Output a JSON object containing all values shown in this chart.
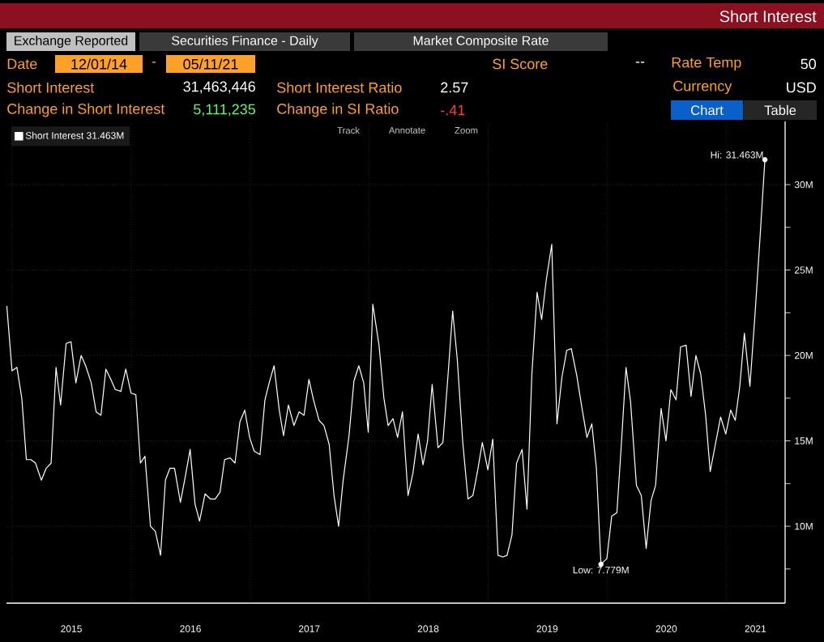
{
  "chart_data": {
    "type": "line",
    "title": "Short Interest",
    "annotations": [
      "Exchange Reported",
      "Securities Finance - Daily",
      "Market Composite Rate",
      "Date",
      "12/01/14",
      "-",
      "05/11/21",
      "SI Score",
      "--",
      "Rate Temp",
      "50",
      "Short Interest",
      "31,463,446",
      "Short Interest Ratio",
      "2.57",
      "Currency",
      "USD",
      "Change in Short Interest",
      "5,111,235",
      "Change in SI Ratio",
      "-.41",
      "Chart",
      "Table",
      "Track",
      "Annotate",
      "Zoom",
      {
        "text": "Hi: 31.463M",
        "x": "2021-04-30",
        "y": 31.463
      },
      {
        "text": "Low: 7.779M",
        "x": "2019-12-13",
        "y": 7.779
      }
    ],
    "x": [
      "2014-12-15",
      "2014-12-31",
      "2015-01-15",
      "2015-01-30",
      "2015-02-13",
      "2015-02-27",
      "2015-03-13",
      "2015-03-31",
      "2015-04-15",
      "2015-04-30",
      "2015-05-15",
      "2015-05-29",
      "2015-06-15",
      "2015-06-30",
      "2015-07-15",
      "2015-07-31",
      "2015-08-14",
      "2015-08-31",
      "2015-09-15",
      "2015-09-30",
      "2015-10-15",
      "2015-10-30",
      "2015-11-13",
      "2015-11-30",
      "2015-12-15",
      "2015-12-31",
      "2016-01-15",
      "2016-01-29",
      "2016-02-12",
      "2016-02-29",
      "2016-03-15",
      "2016-03-31",
      "2016-04-15",
      "2016-04-29",
      "2016-05-13",
      "2016-05-31",
      "2016-06-15",
      "2016-06-30",
      "2016-07-15",
      "2016-07-29",
      "2016-08-15",
      "2016-08-31",
      "2016-09-15",
      "2016-09-30",
      "2016-10-14",
      "2016-10-31",
      "2016-11-15",
      "2016-11-30",
      "2016-12-15",
      "2016-12-30",
      "2017-01-13",
      "2017-01-31",
      "2017-02-15",
      "2017-02-28",
      "2017-03-15",
      "2017-03-31",
      "2017-04-13",
      "2017-04-28",
      "2017-05-15",
      "2017-05-31",
      "2017-06-15",
      "2017-06-30",
      "2017-07-14",
      "2017-07-31",
      "2017-08-15",
      "2017-08-31",
      "2017-09-15",
      "2017-09-29",
      "2017-10-13",
      "2017-10-31",
      "2017-11-15",
      "2017-11-30",
      "2017-12-15",
      "2017-12-29",
      "2018-01-12",
      "2018-01-31",
      "2018-02-15",
      "2018-02-28",
      "2018-03-15",
      "2018-03-29",
      "2018-04-13",
      "2018-04-30",
      "2018-05-15",
      "2018-05-31",
      "2018-06-15",
      "2018-06-29",
      "2018-07-13",
      "2018-07-31",
      "2018-08-15",
      "2018-08-31",
      "2018-09-14",
      "2018-09-28",
      "2018-10-15",
      "2018-10-31",
      "2018-11-15",
      "2018-11-30",
      "2018-12-14",
      "2018-12-31",
      "2019-01-15",
      "2019-01-31",
      "2019-02-15",
      "2019-02-28",
      "2019-03-15",
      "2019-03-29",
      "2019-04-15",
      "2019-04-30",
      "2019-05-15",
      "2019-05-31",
      "2019-06-14",
      "2019-06-28",
      "2019-07-15",
      "2019-07-31",
      "2019-08-15",
      "2019-08-30",
      "2019-09-13",
      "2019-09-30",
      "2019-10-15",
      "2019-10-31",
      "2019-11-15",
      "2019-11-29",
      "2019-12-13",
      "2019-12-31",
      "2020-01-15",
      "2020-01-31",
      "2020-02-14",
      "2020-02-28",
      "2020-03-13",
      "2020-03-31",
      "2020-04-15",
      "2020-04-30",
      "2020-05-15",
      "2020-05-29",
      "2020-06-15",
      "2020-06-30",
      "2020-07-15",
      "2020-07-31",
      "2020-08-14",
      "2020-08-31",
      "2020-09-15",
      "2020-09-30",
      "2020-10-15",
      "2020-10-30",
      "2020-11-13",
      "2020-11-30",
      "2020-12-15",
      "2020-12-31",
      "2021-01-15",
      "2021-01-29",
      "2021-02-12",
      "2021-02-26",
      "2021-03-15",
      "2021-03-31",
      "2021-04-15",
      "2021-04-30"
    ],
    "series": [
      {
        "name": "Short Interest 31.463M",
        "color": "#ffffff",
        "values": [
          22.9,
          19.1,
          19.3,
          17.5,
          13.9,
          13.9,
          13.7,
          12.7,
          13.4,
          13.7,
          19.3,
          17.1,
          20.7,
          20.8,
          18.4,
          20.0,
          19.4,
          18.4,
          16.7,
          16.5,
          19.2,
          18.6,
          18.0,
          17.9,
          19.2,
          17.8,
          17.7,
          13.7,
          14.1,
          10.0,
          9.7,
          8.3,
          12.7,
          13.4,
          13.4,
          11.4,
          12.9,
          14.5,
          11.3,
          10.3,
          11.9,
          11.6,
          11.6,
          12.0,
          13.9,
          14.0,
          13.7,
          16.1,
          16.8,
          15.2,
          14.4,
          14.2,
          17.4,
          18.4,
          19.4,
          16.8,
          15.3,
          17.1,
          15.9,
          16.7,
          16.5,
          18.6,
          17.4,
          16.2,
          15.9,
          14.8,
          11.8,
          10.0,
          12.7,
          15.3,
          18.5,
          19.4,
          18.4,
          15.5,
          23.0,
          20.6,
          17.5,
          15.9,
          16.3,
          15.2,
          16.7,
          11.8,
          13.1,
          15.4,
          13.6,
          15.0,
          18.3,
          14.6,
          14.9,
          18.9,
          22.6,
          19.8,
          14.9,
          11.6,
          11.8,
          13.3,
          14.9,
          13.3,
          15.1,
          8.3,
          8.2,
          8.3,
          9.5,
          13.7,
          14.5,
          11.0,
          18.9,
          23.7,
          22.1,
          24.4,
          26.5,
          16.0,
          18.7,
          20.3,
          20.4,
          18.8,
          17.0,
          15.2,
          16.0,
          13.4,
          7.779,
          8.1,
          10.6,
          10.8,
          14.9,
          19.3,
          17.3,
          12.4,
          11.8,
          8.7,
          11.5,
          12.4,
          16.9,
          15.0,
          18.0,
          17.4,
          20.5,
          20.6,
          17.6,
          20.0,
          18.9,
          16.5,
          13.2,
          14.9,
          16.4,
          15.4,
          16.8,
          16.2,
          18.2,
          21.3,
          18.2,
          22.5,
          26.9,
          31.463
        ]
      }
    ],
    "xlim": [
      "2014-12-14",
      "2021-07-01"
    ],
    "xticks": [
      {
        "value": "2015-01-01",
        "label": null
      },
      {
        "value": "2016-01-01",
        "label": null
      },
      {
        "value": "2017-01-01",
        "label": null
      },
      {
        "value": "2018-01-01",
        "label": null
      },
      {
        "value": "2019-01-01",
        "label": null
      },
      {
        "value": "2020-01-01",
        "label": null
      },
      {
        "value": "2021-01-01",
        "label": null
      },
      {
        "value": "2015-07-01",
        "label": "2015"
      },
      {
        "value": "2016-07-01",
        "label": "2016"
      },
      {
        "value": "2017-07-01",
        "label": "2017"
      },
      {
        "value": "2018-07-01",
        "label": "2018"
      },
      {
        "value": "2019-07-01",
        "label": "2019"
      },
      {
        "value": "2020-07-01",
        "label": "2020"
      },
      {
        "value": "2021-04-01",
        "label": "2021"
      }
    ],
    "ylim": [
      5.5,
      33.7
    ],
    "yticks": [
      {
        "value": 7.5,
        "label": null
      },
      {
        "value": 10,
        "label": "10M"
      },
      {
        "value": 12.5,
        "label": null
      },
      {
        "value": 15,
        "label": "15M"
      },
      {
        "value": 17.5,
        "label": null
      },
      {
        "value": 20,
        "label": "20M"
      },
      {
        "value": 22.5,
        "label": null
      },
      {
        "value": 25,
        "label": "25M"
      },
      {
        "value": 27.5,
        "label": null
      },
      {
        "value": 30,
        "label": "30M"
      }
    ],
    "grid": true,
    "legend": "top left"
  }
}
